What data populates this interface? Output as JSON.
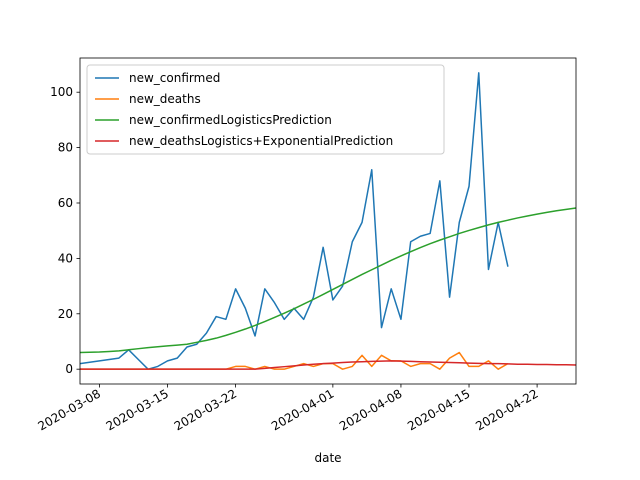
{
  "chart_data": {
    "type": "line",
    "x_label": "date",
    "x": [
      "2020-03-06",
      "2020-03-07",
      "2020-03-08",
      "2020-03-09",
      "2020-03-10",
      "2020-03-11",
      "2020-03-12",
      "2020-03-13",
      "2020-03-14",
      "2020-03-15",
      "2020-03-16",
      "2020-03-17",
      "2020-03-18",
      "2020-03-19",
      "2020-03-20",
      "2020-03-21",
      "2020-03-22",
      "2020-03-23",
      "2020-03-24",
      "2020-03-25",
      "2020-03-26",
      "2020-03-27",
      "2020-03-28",
      "2020-03-29",
      "2020-03-30",
      "2020-03-31",
      "2020-04-01",
      "2020-04-02",
      "2020-04-03",
      "2020-04-04",
      "2020-04-05",
      "2020-04-06",
      "2020-04-07",
      "2020-04-08",
      "2020-04-09",
      "2020-04-10",
      "2020-04-11",
      "2020-04-12",
      "2020-04-13",
      "2020-04-14",
      "2020-04-15",
      "2020-04-16",
      "2020-04-17",
      "2020-04-18",
      "2020-04-19",
      "2020-04-20",
      "2020-04-21",
      "2020-04-22",
      "2020-04-23",
      "2020-04-24",
      "2020-04-25",
      "2020-04-26"
    ],
    "series": [
      {
        "name": "new_confirmed",
        "color": "#1f77b4",
        "values": [
          2,
          2.5,
          3,
          3.5,
          4,
          7,
          3.5,
          0,
          1,
          3,
          4,
          8,
          9,
          13,
          19,
          18,
          29,
          22,
          12,
          29,
          24,
          18,
          22,
          18,
          26,
          44,
          25,
          30,
          46,
          53,
          72,
          15,
          29,
          18,
          46,
          48,
          49,
          68,
          26,
          53,
          66,
          107,
          36,
          53,
          37,
          null,
          null,
          null,
          null,
          null,
          null,
          null
        ]
      },
      {
        "name": "new_deaths",
        "color": "#ff7f0e",
        "values": [
          0,
          0,
          0,
          0,
          0,
          0,
          0,
          0,
          0,
          0,
          0,
          0,
          0,
          0,
          0,
          0,
          1,
          1,
          0,
          1,
          0,
          0,
          1,
          2,
          1,
          2,
          2,
          0,
          1,
          5,
          1,
          5,
          3,
          3,
          1,
          2,
          2,
          0,
          4,
          6,
          1,
          1,
          3,
          0,
          2,
          null,
          null,
          null,
          null,
          null,
          null,
          null
        ]
      },
      {
        "name": "new_confirmedLogisticsPrediction",
        "color": "#2ca02c",
        "values": [
          6.0,
          6.1,
          6.2,
          6.4,
          6.6,
          7.0,
          7.4,
          7.8,
          8.1,
          8.4,
          8.7,
          9.0,
          9.7,
          10.4,
          11.2,
          12.2,
          13.3,
          14.5,
          15.8,
          17.2,
          18.7,
          20.2,
          21.8,
          23.5,
          25.2,
          27.0,
          28.8,
          30.6,
          32.4,
          34.2,
          35.9,
          37.6,
          39.3,
          40.9,
          42.4,
          43.9,
          45.3,
          46.6,
          47.8,
          49.0,
          50.1,
          51.1,
          52.1,
          53.0,
          53.8,
          54.6,
          55.3,
          56.0,
          56.6,
          57.2,
          57.7,
          58.2
        ]
      },
      {
        "name": "new_deathsLogistics+ExponentialPrediction",
        "color": "#d62728",
        "values": [
          0,
          0,
          0,
          0,
          0,
          0,
          0,
          0,
          0,
          0,
          0,
          0,
          0,
          0,
          0,
          0,
          0,
          0,
          0,
          0.3,
          0.6,
          0.9,
          1.2,
          1.5,
          1.8,
          2.0,
          2.2,
          2.4,
          2.6,
          2.7,
          2.8,
          2.9,
          3.0,
          2.9,
          2.8,
          2.7,
          2.6,
          2.5,
          2.4,
          2.3,
          2.2,
          2.1,
          2.0,
          2.0,
          1.9,
          1.8,
          1.8,
          1.7,
          1.7,
          1.6,
          1.6,
          1.5
        ]
      }
    ],
    "xlim": [
      "2020-03-06",
      "2020-04-26"
    ],
    "xticks": [
      "2020-03-08",
      "2020-03-15",
      "2020-03-22",
      "2020-04-01",
      "2020-04-08",
      "2020-04-15",
      "2020-04-22"
    ],
    "ylim": [
      -5.35,
      112.35
    ],
    "yticks": [
      0,
      20,
      40,
      60,
      80,
      100
    ],
    "legend": "upper left"
  }
}
